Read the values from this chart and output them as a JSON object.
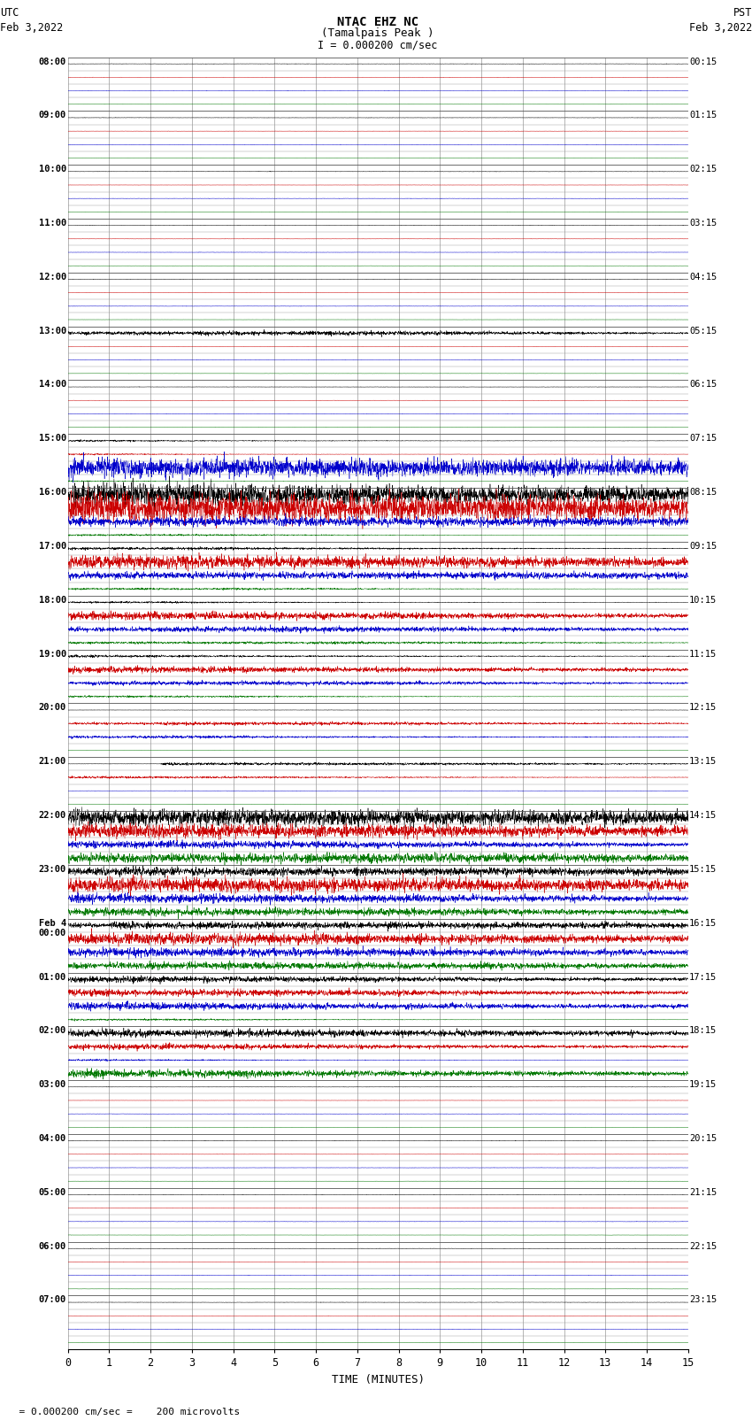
{
  "title_line1": "NTAC EHZ NC",
  "title_line2": "(Tamalpais Peak )",
  "title_line3": "I = 0.000200 cm/sec",
  "label_left_line1": "UTC",
  "label_left_line2": "Feb 3,2022",
  "label_right_line1": "PST",
  "label_right_line2": "Feb 3,2022",
  "xlabel": "TIME (MINUTES)",
  "footer": "  = 0.000200 cm/sec =    200 microvolts",
  "bg_color": "#ffffff",
  "grid_color": "#999999",
  "line_colors": [
    "#000000",
    "#cc0000",
    "#0000cc",
    "#007700"
  ],
  "n_groups": 24,
  "n_lines_per_group": 4,
  "xlim": [
    0,
    15
  ],
  "xticks": [
    0,
    1,
    2,
    3,
    4,
    5,
    6,
    7,
    8,
    9,
    10,
    11,
    12,
    13,
    14,
    15
  ],
  "time_labels_left": [
    "08:00",
    "09:00",
    "10:00",
    "11:00",
    "12:00",
    "13:00",
    "14:00",
    "15:00",
    "16:00",
    "17:00",
    "18:00",
    "19:00",
    "20:00",
    "21:00",
    "22:00",
    "23:00",
    "Feb 4\n00:00",
    "01:00",
    "02:00",
    "03:00",
    "04:00",
    "05:00",
    "06:00",
    "07:00"
  ],
  "time_labels_right": [
    "00:15",
    "01:15",
    "02:15",
    "03:15",
    "04:15",
    "05:15",
    "06:15",
    "07:15",
    "08:15",
    "09:15",
    "10:15",
    "11:15",
    "12:15",
    "13:15",
    "14:15",
    "15:15",
    "16:15",
    "17:15",
    "18:15",
    "19:15",
    "20:15",
    "21:15",
    "22:15",
    "23:15"
  ],
  "noise_base": 0.012,
  "amp_scale": 0.38,
  "seed": 42
}
